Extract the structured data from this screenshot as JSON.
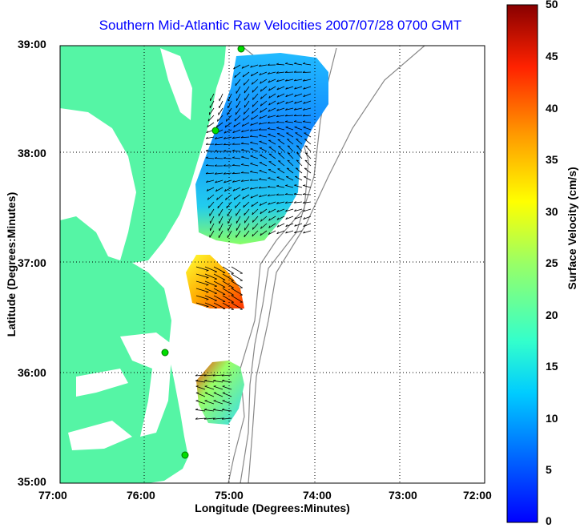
{
  "title": "Southern Mid-Atlantic Raw Velocities 2007/07/28 0700 GMT",
  "axes": {
    "xlabel": "Longitude (Degrees:Minutes)",
    "ylabel": "Latitude (Degrees:Minutes)",
    "xticks": [
      "77:00",
      "76:00",
      "75:00",
      "74:00",
      "73:00",
      "72:00"
    ],
    "yticks": [
      "39:00",
      "38:00",
      "37:00",
      "36:00",
      "35:00"
    ]
  },
  "colorbar": {
    "label": "Surface Velocity (cm/s)",
    "ticks": [
      "0",
      "5",
      "10",
      "15",
      "20",
      "25",
      "30",
      "35",
      "40",
      "45",
      "50"
    ],
    "min": 0,
    "max": 50
  },
  "colors": {
    "land": "#55f5a5",
    "water": "#ffffff",
    "title": "#0000ff",
    "station": "#00cc00"
  }
}
